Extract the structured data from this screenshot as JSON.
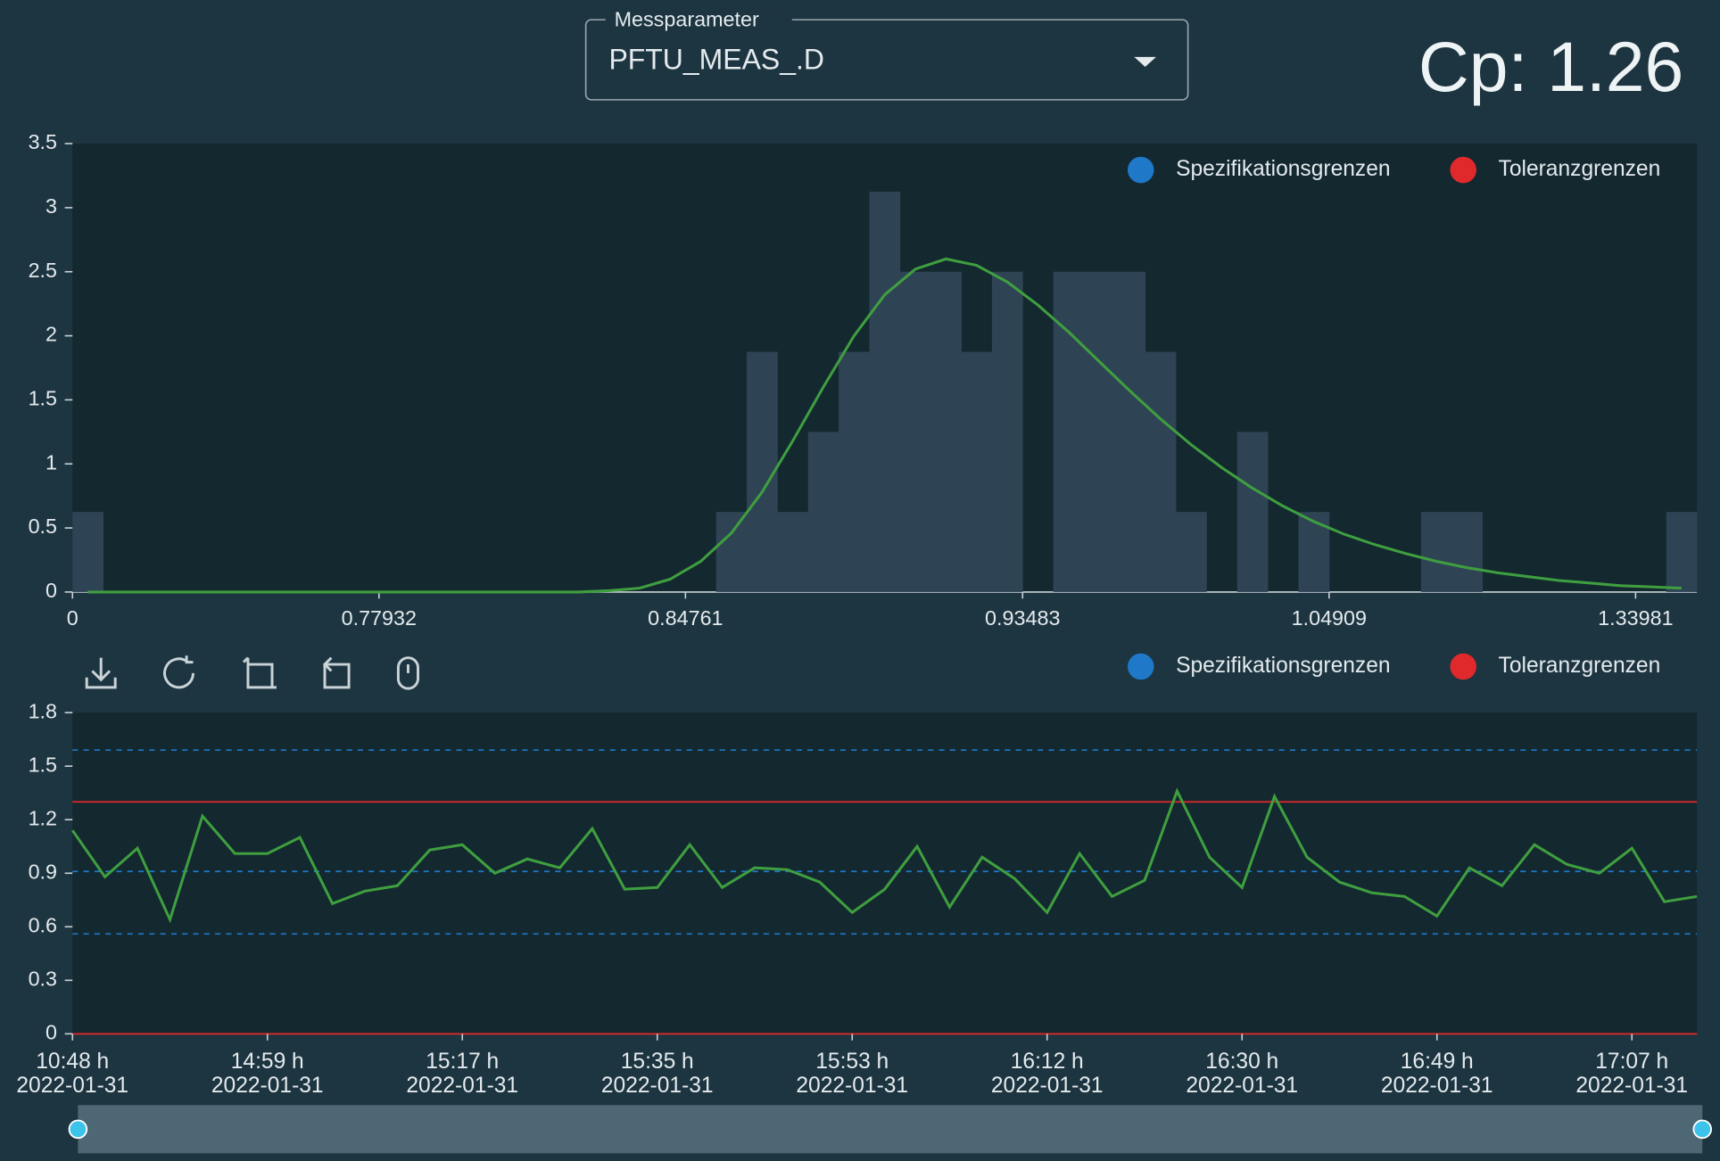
{
  "header": {
    "select_label": "Messparameter",
    "select_value": "PFTU_MEAS_.D",
    "cp_label": "Cp:",
    "cp_value": 1.26
  },
  "chart_data": [
    {
      "type": "bar",
      "categories": [
        "0",
        null,
        null,
        null,
        null,
        null,
        null,
        null,
        null,
        null,
        "0.77932",
        null,
        null,
        null,
        null,
        null,
        null,
        null,
        null,
        null,
        "0.84761",
        null,
        null,
        null,
        null,
        null,
        null,
        null,
        null,
        null,
        null,
        "0.93483",
        null,
        null,
        null,
        null,
        null,
        null,
        null,
        null,
        null,
        "1.04909",
        null,
        null,
        null,
        null,
        null,
        null,
        null,
        null,
        null,
        "1.33981",
        null
      ],
      "values": [
        0.625,
        0,
        0,
        0,
        0,
        0,
        0,
        0,
        0,
        0,
        0,
        0,
        0,
        0,
        0,
        0,
        0,
        0,
        0,
        0,
        0,
        0.625,
        1.875,
        0.625,
        1.25,
        1.875,
        3.125,
        2.5,
        2.5,
        1.875,
        2.5,
        0,
        2.5,
        2.5,
        2.5,
        1.875,
        0.625,
        0,
        1.25,
        0,
        0.625,
        0,
        0,
        0,
        0.625,
        0.625,
        0,
        0,
        0,
        0,
        0,
        0,
        0.625
      ],
      "color": "#2e4454",
      "curve": {
        "color": "#3f9e3f",
        "values": [
          0,
          0,
          0,
          0,
          0,
          0,
          0,
          0,
          0,
          0,
          0,
          0,
          0,
          0,
          0,
          0,
          0,
          0.01,
          0.03,
          0.1,
          0.24,
          0.46,
          0.78,
          1.18,
          1.6,
          2.0,
          2.32,
          2.52,
          2.6,
          2.55,
          2.42,
          2.24,
          2.03,
          1.8,
          1.57,
          1.35,
          1.15,
          0.97,
          0.81,
          0.67,
          0.55,
          0.45,
          0.37,
          0.3,
          0.24,
          0.19,
          0.15,
          0.12,
          0.09,
          0.07,
          0.05,
          0.04,
          0.03
        ]
      },
      "series": [
        {
          "name": "Spezifikationsgrenzen",
          "color": "#1f78c8"
        },
        {
          "name": "Toleranzgrenzen",
          "color": "#e0292b"
        }
      ],
      "ylim": [
        0,
        3.5
      ],
      "yticks": [
        0,
        0.5,
        1,
        1.5,
        2,
        2.5,
        3,
        3.5
      ]
    },
    {
      "type": "line",
      "categories": [
        "10:48 h",
        null,
        null,
        null,
        null,
        null,
        "14:59 h",
        null,
        null,
        null,
        null,
        null,
        "15:17 h",
        null,
        null,
        null,
        null,
        null,
        "15:35 h",
        null,
        null,
        null,
        null,
        null,
        "15:53 h",
        null,
        null,
        null,
        null,
        null,
        "16:12 h",
        null,
        null,
        null,
        null,
        null,
        "16:30 h",
        null,
        null,
        null,
        null,
        null,
        "16:49 h",
        null,
        null,
        null,
        null,
        null,
        "17:07 h",
        null,
        null
      ],
      "category_dates": [
        "2022-01-31",
        null,
        null,
        null,
        null,
        null,
        "2022-01-31",
        null,
        null,
        null,
        null,
        null,
        "2022-01-31",
        null,
        null,
        null,
        null,
        null,
        "2022-01-31",
        null,
        null,
        null,
        null,
        null,
        "2022-01-31",
        null,
        null,
        null,
        null,
        null,
        "2022-01-31",
        null,
        null,
        null,
        null,
        null,
        "2022-01-31",
        null,
        null,
        null,
        null,
        null,
        "2022-01-31",
        null,
        null,
        null,
        null,
        null,
        "2022-01-31",
        null,
        null
      ],
      "values": [
        1.14,
        0.88,
        1.04,
        0.64,
        1.22,
        1.01,
        1.01,
        1.1,
        0.73,
        0.8,
        0.83,
        1.03,
        1.06,
        0.9,
        0.98,
        0.93,
        1.15,
        0.81,
        0.82,
        1.06,
        0.82,
        0.93,
        0.92,
        0.85,
        0.68,
        0.81,
        1.05,
        0.71,
        0.99,
        0.87,
        0.68,
        1.01,
        0.77,
        0.86,
        1.36,
        0.99,
        0.82,
        1.33,
        0.99,
        0.85,
        0.79,
        0.77,
        0.66,
        0.93,
        0.83,
        1.06,
        0.95,
        0.9,
        1.04,
        0.74,
        0.77
      ],
      "color": "#3f9e3f",
      "series": [
        {
          "name": "Spezifikationsgrenzen",
          "color": "#1f78c8",
          "levels": [
            1.59,
            0.91,
            0.56
          ]
        },
        {
          "name": "Toleranzgrenzen",
          "color": "#e0292b",
          "levels": [
            1.3,
            0
          ]
        }
      ],
      "ylim": [
        0,
        1.8
      ],
      "yticks": [
        0,
        0.3,
        0.6,
        0.9,
        1.2,
        1.5,
        1.8
      ]
    }
  ]
}
